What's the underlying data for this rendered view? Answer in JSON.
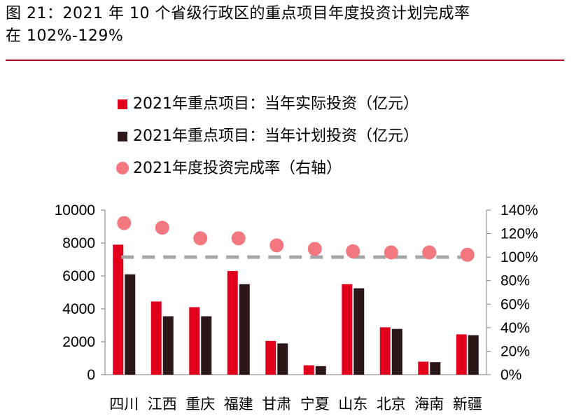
{
  "caption": {
    "line1": "图 21：2021 年 10 个省级行政区的重点项目年度投资计划完成率",
    "line2": "在 102%-129%"
  },
  "colors": {
    "actual": "#e0001b",
    "plan": "#2b1718",
    "rate": "#f2777f",
    "reference": "#a6a6a6",
    "rule": "#a3001e"
  },
  "chart_data": {
    "type": "bar",
    "categories": [
      "四川",
      "江西",
      "重庆",
      "福建",
      "甘肃",
      "宁夏",
      "山东",
      "北京",
      "海南",
      "新疆"
    ],
    "series": [
      {
        "name": "2021年重点项目：当年实际投资（亿元）",
        "type": "bar",
        "axis": "left",
        "values": [
          7900,
          4450,
          4100,
          6300,
          2050,
          570,
          5500,
          2880,
          790,
          2450
        ]
      },
      {
        "name": "2021年重点项目：当年计划投资（亿元）",
        "type": "bar",
        "axis": "left",
        "values": [
          6100,
          3550,
          3550,
          5500,
          1900,
          520,
          5250,
          2780,
          760,
          2400
        ]
      },
      {
        "name": "2021年度投资完成率（右轴）",
        "type": "scatter",
        "axis": "right",
        "values": [
          129,
          125,
          116,
          116,
          110,
          107,
          105,
          104,
          104,
          102
        ]
      }
    ],
    "reference_line": {
      "axis": "right",
      "value": 100,
      "style": "dashed"
    },
    "y_left": {
      "min": 0,
      "max": 10000,
      "ticks": [
        "0",
        "2000",
        "4000",
        "6000",
        "8000",
        "10000"
      ]
    },
    "y_right": {
      "min": 0,
      "max": 140,
      "ticks": [
        "0%",
        "20%",
        "40%",
        "60%",
        "80%",
        "100%",
        "120%",
        "140%"
      ]
    },
    "legend_position": "top-left"
  }
}
